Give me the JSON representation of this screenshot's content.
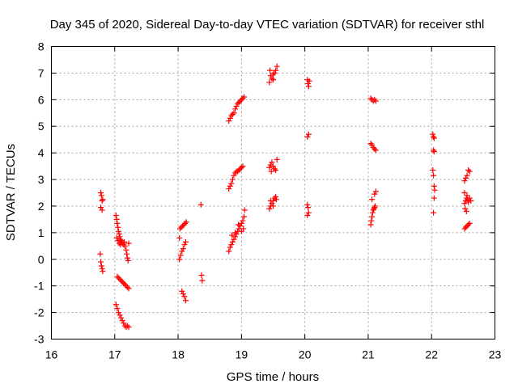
{
  "chart_data": {
    "type": "scatter",
    "title": "Day 345 of 2020, Sidereal Day-to-day VTEC variation (SDTVAR) for receiver sthl",
    "xlabel": "GPS time / hours",
    "ylabel": "SDTVAR / TECUs",
    "xlim": [
      16,
      23
    ],
    "ylim": [
      -3,
      8
    ],
    "xticks": [
      "16",
      "17",
      "18",
      "19",
      "20",
      "21",
      "22",
      "23"
    ],
    "yticks": [
      "-3",
      "-2",
      "-1",
      "0",
      "1",
      "2",
      "3",
      "4",
      "5",
      "6",
      "7",
      "8"
    ],
    "grid": true,
    "marker": "+",
    "color": "#ff0000",
    "series": [
      {
        "name": "SDTVAR",
        "points": [
          [
            16.78,
            2.5
          ],
          [
            16.79,
            2.4
          ],
          [
            16.8,
            2.2
          ],
          [
            16.81,
            2.25
          ],
          [
            16.78,
            1.95
          ],
          [
            16.8,
            1.85
          ],
          [
            16.77,
            0.2
          ],
          [
            16.78,
            -0.1
          ],
          [
            16.79,
            -0.25
          ],
          [
            16.8,
            -0.35
          ],
          [
            16.81,
            -0.45
          ],
          [
            17.02,
            1.65
          ],
          [
            17.03,
            1.5
          ],
          [
            17.04,
            1.35
          ],
          [
            17.05,
            1.2
          ],
          [
            17.06,
            1.05
          ],
          [
            17.07,
            0.95
          ],
          [
            17.08,
            0.85
          ],
          [
            17.09,
            0.75
          ],
          [
            17.1,
            0.7
          ],
          [
            17.11,
            0.65
          ],
          [
            17.12,
            0.6
          ],
          [
            17.14,
            0.55
          ],
          [
            17.15,
            0.65
          ],
          [
            17.16,
            0.5
          ],
          [
            17.18,
            0.35
          ],
          [
            17.19,
            0.2
          ],
          [
            17.2,
            0.05
          ],
          [
            17.21,
            -0.05
          ],
          [
            17.22,
            0.6
          ],
          [
            17.03,
            0.8
          ],
          [
            17.05,
            0.7
          ],
          [
            17.07,
            0.6
          ],
          [
            17.09,
            0.55
          ],
          [
            17.04,
            -0.65
          ],
          [
            17.06,
            -0.7
          ],
          [
            17.08,
            -0.75
          ],
          [
            17.1,
            -0.8
          ],
          [
            17.12,
            -0.85
          ],
          [
            17.14,
            -0.9
          ],
          [
            17.16,
            -0.95
          ],
          [
            17.18,
            -1.0
          ],
          [
            17.2,
            -1.05
          ],
          [
            17.22,
            -1.1
          ],
          [
            17.02,
            -1.7
          ],
          [
            17.04,
            -1.85
          ],
          [
            17.06,
            -2.0
          ],
          [
            17.08,
            -2.1
          ],
          [
            17.1,
            -2.2
          ],
          [
            17.12,
            -2.3
          ],
          [
            17.14,
            -2.4
          ],
          [
            17.16,
            -2.5
          ],
          [
            17.18,
            -2.55
          ],
          [
            17.2,
            -2.5
          ],
          [
            17.22,
            -2.55
          ],
          [
            18.02,
            0.8
          ],
          [
            18.03,
            1.15
          ],
          [
            18.05,
            1.2
          ],
          [
            18.07,
            1.25
          ],
          [
            18.09,
            1.3
          ],
          [
            18.11,
            1.35
          ],
          [
            18.13,
            1.4
          ],
          [
            18.02,
            0.0
          ],
          [
            18.04,
            0.15
          ],
          [
            18.06,
            0.3
          ],
          [
            18.08,
            0.4
          ],
          [
            18.1,
            0.55
          ],
          [
            18.12,
            0.65
          ],
          [
            18.06,
            -1.2
          ],
          [
            18.08,
            -1.3
          ],
          [
            18.1,
            -1.4
          ],
          [
            18.12,
            -1.55
          ],
          [
            18.36,
            2.05
          ],
          [
            18.37,
            -0.6
          ],
          [
            18.38,
            -0.8
          ],
          [
            18.8,
            0.3
          ],
          [
            18.82,
            0.45
          ],
          [
            18.84,
            0.55
          ],
          [
            18.86,
            0.65
          ],
          [
            18.88,
            0.75
          ],
          [
            18.9,
            0.85
          ],
          [
            18.92,
            0.95
          ],
          [
            18.94,
            1.05
          ],
          [
            18.96,
            1.15
          ],
          [
            18.98,
            1.25
          ],
          [
            19.0,
            1.35
          ],
          [
            19.02,
            1.45
          ],
          [
            19.04,
            1.6
          ],
          [
            19.05,
            1.85
          ],
          [
            18.85,
            0.9
          ],
          [
            18.9,
            1.0
          ],
          [
            18.95,
            1.3
          ],
          [
            19.0,
            1.05
          ],
          [
            19.03,
            1.15
          ],
          [
            18.8,
            2.65
          ],
          [
            18.82,
            2.75
          ],
          [
            18.84,
            2.85
          ],
          [
            18.86,
            3.0
          ],
          [
            18.88,
            3.15
          ],
          [
            18.9,
            3.25
          ],
          [
            18.92,
            3.3
          ],
          [
            18.94,
            3.3
          ],
          [
            18.96,
            3.35
          ],
          [
            18.98,
            3.4
          ],
          [
            19.0,
            3.45
          ],
          [
            19.02,
            3.5
          ],
          [
            18.8,
            5.2
          ],
          [
            18.82,
            5.3
          ],
          [
            18.84,
            5.4
          ],
          [
            18.86,
            5.45
          ],
          [
            18.88,
            5.5
          ],
          [
            18.9,
            5.65
          ],
          [
            18.92,
            5.75
          ],
          [
            18.94,
            5.85
          ],
          [
            18.96,
            5.9
          ],
          [
            18.98,
            5.95
          ],
          [
            19.0,
            6.0
          ],
          [
            19.02,
            6.05
          ],
          [
            19.04,
            6.1
          ],
          [
            19.44,
            1.9
          ],
          [
            19.46,
            2.0
          ],
          [
            19.48,
            2.1
          ],
          [
            19.5,
            2.2
          ],
          [
            19.52,
            2.3
          ],
          [
            19.54,
            2.35
          ],
          [
            19.46,
            2.2
          ],
          [
            19.5,
            2.0
          ],
          [
            19.55,
            2.25
          ],
          [
            19.44,
            3.45
          ],
          [
            19.46,
            3.55
          ],
          [
            19.48,
            3.65
          ],
          [
            19.5,
            3.5
          ],
          [
            19.52,
            3.4
          ],
          [
            19.54,
            3.35
          ],
          [
            19.56,
            3.75
          ],
          [
            19.47,
            3.3
          ],
          [
            19.44,
            6.65
          ],
          [
            19.45,
            7.1
          ],
          [
            19.46,
            6.9
          ],
          [
            19.48,
            6.8
          ],
          [
            19.5,
            6.95
          ],
          [
            19.52,
            7.0
          ],
          [
            19.54,
            7.1
          ],
          [
            19.56,
            7.25
          ],
          [
            19.5,
            6.75
          ],
          [
            20.04,
            6.75
          ],
          [
            20.05,
            6.6
          ],
          [
            20.06,
            6.5
          ],
          [
            20.07,
            6.7
          ],
          [
            20.04,
            4.6
          ],
          [
            20.06,
            4.7
          ],
          [
            20.04,
            2.05
          ],
          [
            20.05,
            1.95
          ],
          [
            20.06,
            1.75
          ],
          [
            20.04,
            1.65
          ],
          [
            21.04,
            6.05
          ],
          [
            21.06,
            6.0
          ],
          [
            21.08,
            5.95
          ],
          [
            21.1,
            6.0
          ],
          [
            21.12,
            5.95
          ],
          [
            21.04,
            4.35
          ],
          [
            21.06,
            4.3
          ],
          [
            21.08,
            4.2
          ],
          [
            21.1,
            4.15
          ],
          [
            21.12,
            4.1
          ],
          [
            21.04,
            1.3
          ],
          [
            21.05,
            1.45
          ],
          [
            21.06,
            1.6
          ],
          [
            21.07,
            1.75
          ],
          [
            21.08,
            1.85
          ],
          [
            21.09,
            1.9
          ],
          [
            21.1,
            1.95
          ],
          [
            21.11,
            2.0
          ],
          [
            21.06,
            2.25
          ],
          [
            21.1,
            2.45
          ],
          [
            21.12,
            2.55
          ],
          [
            22.02,
            4.7
          ],
          [
            22.03,
            4.6
          ],
          [
            22.04,
            4.55
          ],
          [
            22.03,
            4.1
          ],
          [
            22.04,
            4.05
          ],
          [
            22.02,
            3.35
          ],
          [
            22.03,
            3.15
          ],
          [
            22.04,
            2.75
          ],
          [
            22.05,
            2.6
          ],
          [
            22.04,
            2.3
          ],
          [
            22.03,
            1.75
          ],
          [
            22.52,
            2.95
          ],
          [
            22.54,
            3.05
          ],
          [
            22.56,
            3.15
          ],
          [
            22.58,
            3.35
          ],
          [
            22.6,
            3.3
          ],
          [
            22.52,
            2.1
          ],
          [
            22.54,
            2.2
          ],
          [
            22.55,
            2.3
          ],
          [
            22.56,
            2.4
          ],
          [
            22.57,
            2.25
          ],
          [
            22.58,
            2.15
          ],
          [
            22.6,
            2.3
          ],
          [
            22.62,
            2.2
          ],
          [
            22.53,
            1.9
          ],
          [
            22.55,
            1.8
          ],
          [
            22.52,
            2.5
          ],
          [
            22.52,
            1.15
          ],
          [
            22.54,
            1.2
          ],
          [
            22.56,
            1.25
          ],
          [
            22.58,
            1.3
          ],
          [
            22.6,
            1.35
          ]
        ]
      }
    ]
  }
}
